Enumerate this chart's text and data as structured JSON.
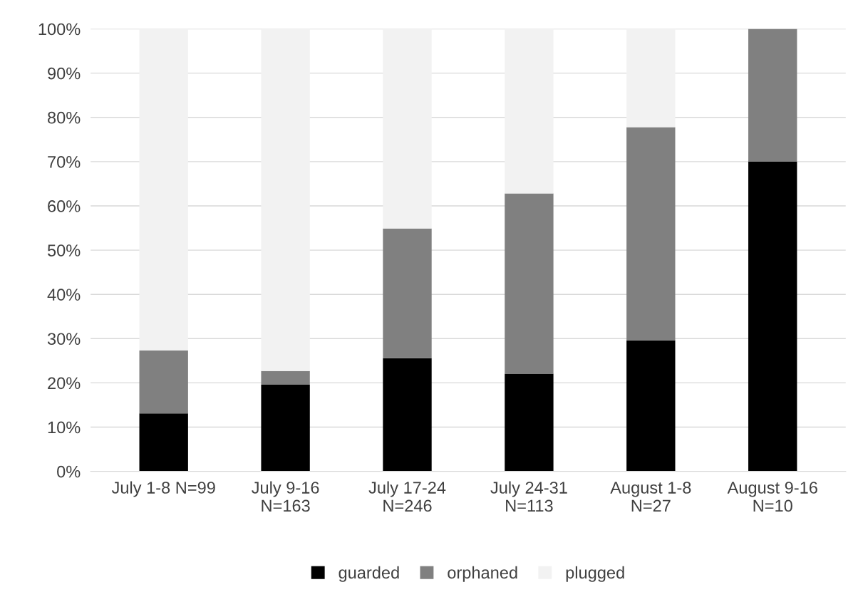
{
  "chart_data": {
    "type": "bar",
    "stacked": true,
    "categories": [
      "July 1-8 N=99",
      "July 9-16\nN=163",
      "July 17-24\nN=246",
      "July 24-31\nN=113",
      "August 1-8\nN=27",
      "August 9-16\nN=10"
    ],
    "series": [
      {
        "name": "guarded",
        "color": "#000000",
        "values": [
          13.1,
          19.6,
          25.6,
          22.1,
          29.6,
          70
        ]
      },
      {
        "name": "orphaned",
        "color": "#808080",
        "values": [
          14.2,
          3.1,
          29.3,
          40.7,
          48.2,
          30
        ]
      },
      {
        "name": "plugged",
        "color": "#f2f2f2",
        "values": [
          72.7,
          77.3,
          45.1,
          37.2,
          22.2,
          0
        ]
      }
    ],
    "ylim": [
      0,
      100
    ],
    "yticks": [
      {
        "value": 0,
        "label": "0%"
      },
      {
        "value": 10,
        "label": "10%"
      },
      {
        "value": 20,
        "label": "20%"
      },
      {
        "value": 30,
        "label": "30%"
      },
      {
        "value": 40,
        "label": "40%"
      },
      {
        "value": 50,
        "label": "50%"
      },
      {
        "value": 60,
        "label": "60%"
      },
      {
        "value": 70,
        "label": "70%"
      },
      {
        "value": 80,
        "label": "80%"
      },
      {
        "value": 90,
        "label": "90%"
      },
      {
        "value": 100,
        "label": "100%"
      }
    ],
    "grid": "y",
    "legend": "bottom"
  }
}
